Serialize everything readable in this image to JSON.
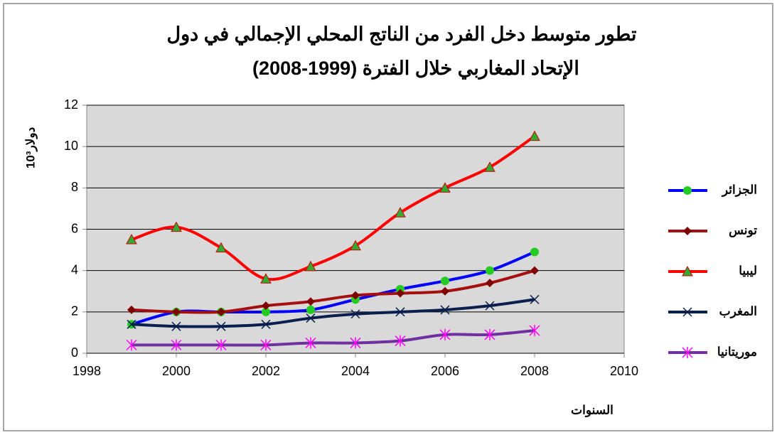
{
  "chart_data": {
    "type": "line",
    "title": [
      "تطور متوسط دخل الفرد من الناتج المحلي الإجمالي في دول",
      "الإتحاد المغاربي خلال الفترة (1999-2008)"
    ],
    "ylabel": "10³دولار",
    "xlabel": "السنوات",
    "x": [
      1999,
      2000,
      2001,
      2002,
      2003,
      2004,
      2005,
      2006,
      2007,
      2008
    ],
    "series": [
      {
        "name": "الجزائر",
        "color": "#0000ff",
        "marker": "circle",
        "marker_color": "#22cc22",
        "values": [
          1.4,
          2.0,
          2.0,
          2.0,
          2.1,
          2.6,
          3.1,
          3.5,
          4.0,
          4.9
        ]
      },
      {
        "name": "تونس",
        "color": "#a50f0f",
        "marker": "diamond",
        "marker_color": "#800000",
        "values": [
          2.1,
          2.0,
          2.0,
          2.3,
          2.5,
          2.8,
          2.9,
          3.0,
          3.4,
          4.0
        ]
      },
      {
        "name": "ليبيا",
        "color": "#ff0000",
        "marker": "triangle",
        "marker_color": "#33aa33",
        "values": [
          5.5,
          6.1,
          5.1,
          3.6,
          4.2,
          5.2,
          6.8,
          8.0,
          9.0,
          10.5
        ]
      },
      {
        "name": "المغرب",
        "color": "#0a1f4d",
        "marker": "x",
        "marker_color": "#0a1f4d",
        "values": [
          1.4,
          1.3,
          1.3,
          1.4,
          1.7,
          1.9,
          2.0,
          2.1,
          2.3,
          2.6
        ]
      },
      {
        "name": "موريتانيا",
        "color": "#7030a0",
        "marker": "asterisk",
        "marker_color": "#ff00ff",
        "values": [
          0.4,
          0.4,
          0.4,
          0.4,
          0.5,
          0.5,
          0.6,
          0.9,
          0.9,
          1.1
        ]
      }
    ],
    "xlim": [
      1998,
      2010
    ],
    "xticks": [
      1998,
      2000,
      2002,
      2004,
      2006,
      2008,
      2010
    ],
    "ylim": [
      0,
      12
    ],
    "yticks": [
      0,
      2,
      4,
      6,
      8,
      10,
      12
    ],
    "grid": true,
    "legend": "right"
  }
}
